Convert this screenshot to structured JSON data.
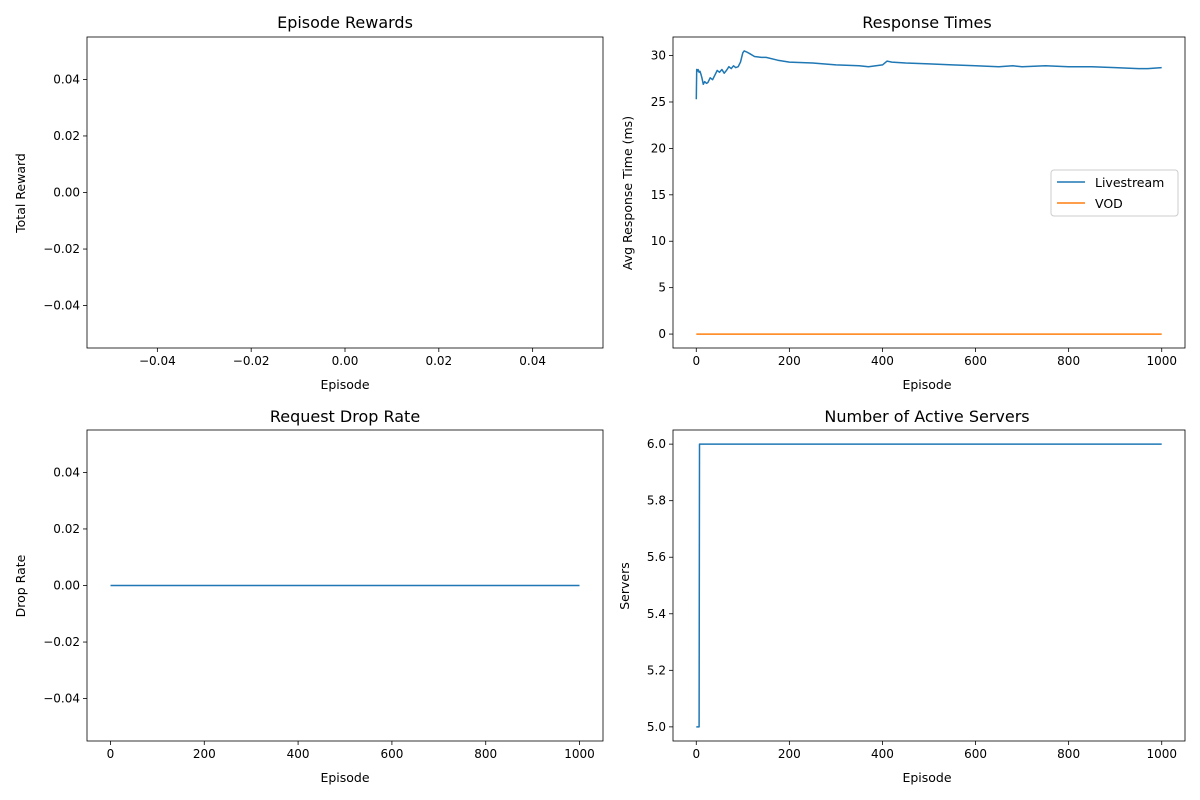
{
  "chart_data": [
    {
      "id": "rewards",
      "type": "line",
      "title": "Episode Rewards",
      "xlabel": "Episode",
      "ylabel": "Total Reward",
      "xlim": [
        -0.055,
        0.055
      ],
      "ylim": [
        -0.055,
        0.055
      ],
      "x_ticks": [
        -0.04,
        -0.02,
        0.0,
        0.02,
        0.04
      ],
      "x_tick_labels": [
        "−0.04",
        "−0.02",
        "0.00",
        "0.02",
        "0.04"
      ],
      "y_ticks": [
        -0.04,
        -0.02,
        0.0,
        0.02,
        0.04
      ],
      "y_tick_labels": [
        "−0.04",
        "−0.02",
        "0.00",
        "0.02",
        "0.04"
      ],
      "grid": false,
      "legend": null,
      "series": [
        {
          "color": "#1f77b4",
          "x": [],
          "y": []
        }
      ]
    },
    {
      "id": "response",
      "type": "line",
      "title": "Response Times",
      "xlabel": "Episode",
      "ylabel": "Avg Response Time (ms)",
      "xlim": [
        -50,
        1050
      ],
      "ylim": [
        -1.5,
        32.0
      ],
      "x_ticks": [
        0,
        200,
        400,
        600,
        800,
        1000
      ],
      "x_tick_labels": [
        "0",
        "200",
        "400",
        "600",
        "800",
        "1000"
      ],
      "y_ticks": [
        0,
        5,
        10,
        15,
        20,
        25,
        30
      ],
      "y_tick_labels": [
        "0",
        "5",
        "10",
        "15",
        "20",
        "25",
        "30"
      ],
      "grid": false,
      "legend": "center-right",
      "series": [
        {
          "name": "Livestream",
          "color": "#1f77b4",
          "x": [
            0,
            1,
            2,
            4,
            6,
            8,
            10,
            12,
            15,
            18,
            22,
            25,
            30,
            35,
            40,
            45,
            50,
            55,
            60,
            65,
            70,
            75,
            80,
            85,
            90,
            95,
            100,
            103,
            108,
            115,
            125,
            140,
            150,
            175,
            200,
            250,
            300,
            350,
            370,
            400,
            410,
            420,
            450,
            500,
            550,
            600,
            650,
            680,
            700,
            750,
            800,
            850,
            900,
            950,
            970,
            1000
          ],
          "y": [
            25.3,
            28.5,
            28.3,
            28.5,
            28.2,
            28.3,
            28.0,
            27.6,
            26.9,
            27.2,
            27.0,
            27.1,
            27.6,
            27.4,
            27.9,
            28.4,
            28.2,
            28.5,
            28.1,
            28.4,
            28.8,
            28.6,
            28.9,
            28.7,
            28.8,
            29.3,
            30.3,
            30.5,
            30.4,
            30.2,
            29.9,
            29.8,
            29.8,
            29.5,
            29.3,
            29.2,
            29.0,
            28.9,
            28.8,
            29.0,
            29.4,
            29.3,
            29.2,
            29.1,
            29.0,
            28.9,
            28.8,
            28.9,
            28.8,
            28.9,
            28.8,
            28.8,
            28.7,
            28.6,
            28.6,
            28.7
          ]
        },
        {
          "name": "VOD",
          "color": "#ff7f0e",
          "x": [
            0,
            1000
          ],
          "y": [
            0,
            0
          ]
        }
      ]
    },
    {
      "id": "drop",
      "type": "line",
      "title": "Request Drop Rate",
      "xlabel": "Episode",
      "ylabel": "Drop Rate",
      "xlim": [
        -50,
        1050
      ],
      "ylim": [
        -0.055,
        0.055
      ],
      "x_ticks": [
        0,
        200,
        400,
        600,
        800,
        1000
      ],
      "x_tick_labels": [
        "0",
        "200",
        "400",
        "600",
        "800",
        "1000"
      ],
      "y_ticks": [
        -0.04,
        -0.02,
        0.0,
        0.02,
        0.04
      ],
      "y_tick_labels": [
        "−0.04",
        "−0.02",
        "0.00",
        "0.02",
        "0.04"
      ],
      "grid": false,
      "legend": null,
      "series": [
        {
          "color": "#1f77b4",
          "x": [
            0,
            1000
          ],
          "y": [
            0,
            0
          ]
        }
      ]
    },
    {
      "id": "servers",
      "type": "line",
      "title": "Number of Active Servers",
      "xlabel": "Episode",
      "ylabel": "Servers",
      "xlim": [
        -50,
        1050
      ],
      "ylim": [
        4.95,
        6.05
      ],
      "x_ticks": [
        0,
        200,
        400,
        600,
        800,
        1000
      ],
      "x_tick_labels": [
        "0",
        "200",
        "400",
        "600",
        "800",
        "1000"
      ],
      "y_ticks": [
        5.0,
        5.2,
        5.4,
        5.6,
        5.8,
        6.0
      ],
      "y_tick_labels": [
        "5.0",
        "5.2",
        "5.4",
        "5.6",
        "5.8",
        "6.0"
      ],
      "grid": false,
      "legend": null,
      "series": [
        {
          "color": "#1f77b4",
          "x": [
            0,
            6,
            7,
            1000
          ],
          "y": [
            5,
            5,
            6,
            6
          ]
        }
      ]
    }
  ]
}
